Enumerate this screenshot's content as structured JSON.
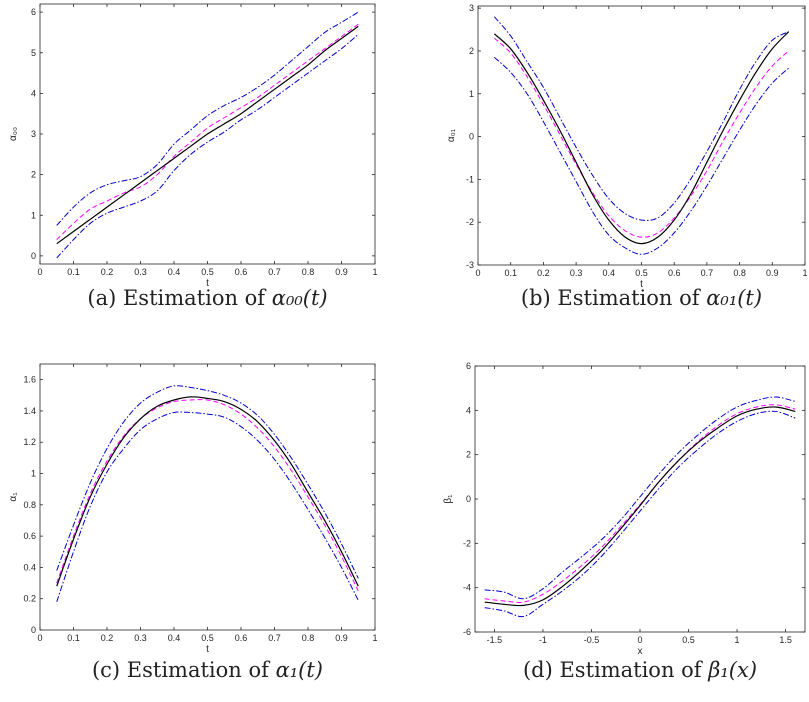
{
  "chart_data": [
    {
      "type": "line",
      "caption": {
        "prefix": "(a) Estimation of ",
        "math": "α₀₀(t)"
      },
      "xlabel": "t",
      "ylabel": "α₀₀",
      "xlim": [
        0,
        1
      ],
      "ylim": [
        -0.2,
        6.2
      ],
      "xticks": [
        0,
        0.1,
        0.2,
        0.3,
        0.4,
        0.5,
        0.6,
        0.7,
        0.8,
        0.9,
        1
      ],
      "xtick_labels": [
        "0",
        "0.1",
        "0.2",
        "0.3",
        "0.4",
        "0.5",
        "0.6",
        "0.7",
        "0.8",
        "0.9",
        "1"
      ],
      "yticks": [
        0,
        1,
        2,
        3,
        4,
        5,
        6
      ],
      "ytick_labels": [
        "0",
        "1",
        "2",
        "3",
        "4",
        "5",
        "6"
      ],
      "grid": false,
      "x": [
        0.05,
        0.1,
        0.15,
        0.2,
        0.25,
        0.3,
        0.35,
        0.4,
        0.45,
        0.5,
        0.55,
        0.6,
        0.65,
        0.7,
        0.75,
        0.8,
        0.85,
        0.9,
        0.95
      ],
      "series": [
        {
          "role": "true",
          "color": "#000000",
          "dash": "solid",
          "values": [
            0.3,
            0.6,
            0.9,
            1.2,
            1.5,
            1.8,
            2.1,
            2.4,
            2.7,
            3.0,
            3.25,
            3.5,
            3.8,
            4.1,
            4.4,
            4.7,
            5.05,
            5.35,
            5.65
          ]
        },
        {
          "role": "mean",
          "color": "#ff00ff",
          "dash": "dashed",
          "values": [
            0.4,
            0.8,
            1.15,
            1.35,
            1.55,
            1.7,
            2.0,
            2.45,
            2.8,
            3.15,
            3.4,
            3.65,
            3.9,
            4.2,
            4.5,
            4.8,
            5.1,
            5.4,
            5.7
          ]
        },
        {
          "role": "upper",
          "color": "#0000cc",
          "dash": "dashdot",
          "values": [
            0.75,
            1.2,
            1.55,
            1.75,
            1.85,
            1.95,
            2.25,
            2.75,
            3.1,
            3.45,
            3.7,
            3.9,
            4.15,
            4.45,
            4.8,
            5.15,
            5.5,
            5.75,
            6.0
          ]
        },
        {
          "role": "lower",
          "color": "#0000cc",
          "dash": "dashdot",
          "values": [
            -0.05,
            0.4,
            0.8,
            1.05,
            1.2,
            1.35,
            1.6,
            2.1,
            2.5,
            2.8,
            3.05,
            3.35,
            3.6,
            3.9,
            4.2,
            4.5,
            4.8,
            5.1,
            5.45
          ]
        }
      ]
    },
    {
      "type": "line",
      "caption": {
        "prefix": "(b) Estimation of ",
        "math": "α₀₁(t)"
      },
      "xlabel": "t",
      "ylabel": "α₀₁",
      "xlim": [
        0,
        1
      ],
      "ylim": [
        -3,
        3.05
      ],
      "xticks": [
        0,
        0.1,
        0.2,
        0.3,
        0.4,
        0.5,
        0.6,
        0.7,
        0.8,
        0.9,
        1
      ],
      "xtick_labels": [
        "0",
        "0.1",
        "0.2",
        "0.3",
        "0.4",
        "0.5",
        "0.6",
        "0.7",
        "0.8",
        "0.9",
        "1"
      ],
      "yticks": [
        -3,
        -2,
        -1,
        0,
        1,
        2,
        3
      ],
      "ytick_labels": [
        "-3",
        "-2",
        "-1",
        "0",
        "1",
        "2",
        "3"
      ],
      "grid": false,
      "x": [
        0.05,
        0.1,
        0.15,
        0.2,
        0.25,
        0.3,
        0.35,
        0.4,
        0.45,
        0.5,
        0.55,
        0.6,
        0.65,
        0.7,
        0.75,
        0.8,
        0.85,
        0.9,
        0.95
      ],
      "series": [
        {
          "role": "true",
          "color": "#000000",
          "dash": "solid",
          "values": [
            2.4,
            2.05,
            1.5,
            0.85,
            0.15,
            -0.6,
            -1.35,
            -1.95,
            -2.35,
            -2.5,
            -2.35,
            -1.95,
            -1.35,
            -0.6,
            0.15,
            0.85,
            1.5,
            2.05,
            2.45
          ]
        },
        {
          "role": "mean",
          "color": "#ff00ff",
          "dash": "dashed",
          "values": [
            2.3,
            1.95,
            1.4,
            0.75,
            0.05,
            -0.65,
            -1.3,
            -1.85,
            -2.2,
            -2.35,
            -2.25,
            -1.9,
            -1.4,
            -0.8,
            -0.1,
            0.55,
            1.15,
            1.65,
            2.0
          ]
        },
        {
          "role": "upper",
          "color": "#0000cc",
          "dash": "dashdot",
          "values": [
            2.8,
            2.35,
            1.75,
            1.15,
            0.45,
            -0.25,
            -0.9,
            -1.45,
            -1.8,
            -1.95,
            -1.9,
            -1.55,
            -1.0,
            -0.35,
            0.35,
            1.1,
            1.75,
            2.25,
            2.45
          ]
        },
        {
          "role": "lower",
          "color": "#0000cc",
          "dash": "dashdot",
          "values": [
            1.85,
            1.5,
            1.0,
            0.35,
            -0.35,
            -1.05,
            -1.75,
            -2.3,
            -2.6,
            -2.75,
            -2.6,
            -2.25,
            -1.75,
            -1.15,
            -0.5,
            0.15,
            0.75,
            1.25,
            1.6
          ]
        }
      ]
    },
    {
      "type": "line",
      "caption": {
        "prefix": "(c) Estimation of ",
        "math": "α₁(t)"
      },
      "xlabel": "t",
      "ylabel": "α₁",
      "xlim": [
        0,
        1
      ],
      "ylim": [
        0,
        1.7
      ],
      "xticks": [
        0,
        0.1,
        0.2,
        0.3,
        0.4,
        0.5,
        0.6,
        0.7,
        0.8,
        0.9,
        1
      ],
      "xtick_labels": [
        "0",
        "0.1",
        "0.2",
        "0.3",
        "0.4",
        "0.5",
        "0.6",
        "0.7",
        "0.8",
        "0.9",
        "1"
      ],
      "yticks": [
        0,
        0.2,
        0.4,
        0.6,
        0.8,
        1,
        1.2,
        1.4,
        1.6
      ],
      "ytick_labels": [
        "0",
        "0.2",
        "0.4",
        "0.6",
        "0.8",
        "1",
        "1.2",
        "1.4",
        "1.6"
      ],
      "grid": false,
      "x": [
        0.05,
        0.1,
        0.15,
        0.2,
        0.25,
        0.3,
        0.35,
        0.4,
        0.45,
        0.5,
        0.55,
        0.6,
        0.65,
        0.7,
        0.75,
        0.8,
        0.85,
        0.9,
        0.95
      ],
      "series": [
        {
          "role": "true",
          "color": "#000000",
          "dash": "solid",
          "values": [
            0.28,
            0.58,
            0.85,
            1.06,
            1.23,
            1.35,
            1.43,
            1.47,
            1.49,
            1.48,
            1.46,
            1.41,
            1.33,
            1.21,
            1.06,
            0.88,
            0.7,
            0.5,
            0.28
          ]
        },
        {
          "role": "mean",
          "color": "#ff00ff",
          "dash": "dashed",
          "values": [
            0.3,
            0.6,
            0.87,
            1.08,
            1.24,
            1.35,
            1.42,
            1.46,
            1.47,
            1.47,
            1.44,
            1.38,
            1.29,
            1.17,
            1.02,
            0.85,
            0.67,
            0.47,
            0.25
          ]
        },
        {
          "role": "upper",
          "color": "#0000cc",
          "dash": "dashdot",
          "values": [
            0.38,
            0.67,
            0.94,
            1.16,
            1.33,
            1.45,
            1.52,
            1.56,
            1.55,
            1.53,
            1.5,
            1.45,
            1.37,
            1.25,
            1.1,
            0.93,
            0.75,
            0.55,
            0.33
          ]
        },
        {
          "role": "lower",
          "color": "#0000cc",
          "dash": "dashdot",
          "values": [
            0.18,
            0.5,
            0.79,
            1.01,
            1.16,
            1.28,
            1.35,
            1.39,
            1.39,
            1.38,
            1.36,
            1.3,
            1.21,
            1.09,
            0.94,
            0.77,
            0.59,
            0.4,
            0.19
          ]
        }
      ]
    },
    {
      "type": "line",
      "caption": {
        "prefix": "(d) Estimation of ",
        "math": "β₁(x)"
      },
      "xlabel": "x",
      "ylabel": "β₁",
      "xlim": [
        -1.7,
        1.7
      ],
      "ylim": [
        -6,
        6
      ],
      "xticks": [
        -1.5,
        -1,
        -0.5,
        0,
        0.5,
        1,
        1.5
      ],
      "xtick_labels": [
        "-1.5",
        "-1",
        "-0.5",
        "0",
        "0.5",
        "1",
        "1.5"
      ],
      "yticks": [
        -6,
        -4,
        -2,
        0,
        2,
        4,
        6
      ],
      "ytick_labels": [
        "-6",
        "-4",
        "-2",
        "0",
        "2",
        "4",
        "6"
      ],
      "grid": false,
      "x": [
        -1.6,
        -1.4,
        -1.2,
        -1.0,
        -0.8,
        -0.6,
        -0.4,
        -0.2,
        0,
        0.2,
        0.4,
        0.6,
        0.8,
        1.0,
        1.2,
        1.4,
        1.6
      ],
      "series": [
        {
          "role": "true",
          "color": "#000000",
          "dash": "solid",
          "values": [
            -4.65,
            -4.75,
            -4.8,
            -4.55,
            -3.95,
            -3.2,
            -2.35,
            -1.35,
            -0.3,
            0.8,
            1.75,
            2.55,
            3.2,
            3.75,
            4.05,
            4.15,
            3.95
          ]
        },
        {
          "role": "mean",
          "color": "#ff00ff",
          "dash": "dashed",
          "values": [
            -4.5,
            -4.6,
            -4.65,
            -4.3,
            -3.7,
            -3.0,
            -2.2,
            -1.25,
            -0.25,
            0.8,
            1.75,
            2.6,
            3.3,
            3.85,
            4.15,
            4.25,
            4.05
          ]
        },
        {
          "role": "upper",
          "color": "#0000cc",
          "dash": "dashdot",
          "values": [
            -4.1,
            -4.2,
            -4.5,
            -4.05,
            -3.3,
            -2.6,
            -1.85,
            -0.95,
            0.1,
            1.15,
            2.1,
            2.9,
            3.6,
            4.15,
            4.45,
            4.6,
            4.4
          ]
        },
        {
          "role": "lower",
          "color": "#0000cc",
          "dash": "dashdot",
          "values": [
            -4.9,
            -5.05,
            -5.3,
            -4.75,
            -4.15,
            -3.45,
            -2.6,
            -1.6,
            -0.55,
            0.5,
            1.45,
            2.25,
            2.95,
            3.5,
            3.85,
            3.95,
            3.65
          ]
        }
      ]
    }
  ]
}
